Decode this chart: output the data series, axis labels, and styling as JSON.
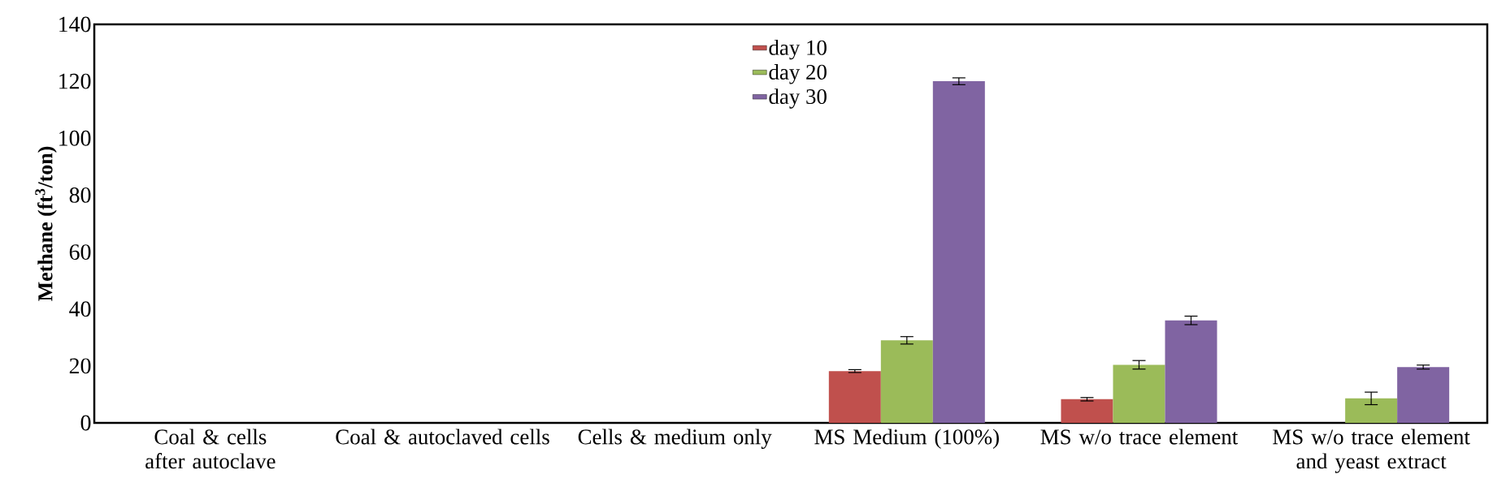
{
  "chart_data": {
    "type": "bar",
    "ylabel": "**Methane (ft$^{3}$/ton)**",
    "categories": [
      "Coal & cells after autoclave",
      "Coal & autoclaved cells",
      "Cells & medium only",
      "MS Medium (100%)",
      "MS w/o trace element",
      "MS w/o trace element and yeast extract"
    ],
    "series": [
      {
        "name": "day 10",
        "color": "#c0504d",
        "values": [
          0,
          0,
          0,
          18.2,
          8.3,
          0
        ],
        "errors": [
          null,
          null,
          null,
          0.5,
          0.6,
          null
        ]
      },
      {
        "name": "day 20",
        "color": "#9bbb59",
        "values": [
          0,
          0,
          0,
          29.0,
          20.4,
          8.6
        ],
        "errors": [
          null,
          null,
          null,
          1.3,
          1.5,
          2.2
        ]
      },
      {
        "name": "day 30",
        "color": "#8064a2",
        "values": [
          0,
          0,
          0,
          120.0,
          36.0,
          19.6
        ],
        "errors": [
          null,
          null,
          null,
          1.2,
          1.5,
          0.7
        ]
      }
    ],
    "ylim": [
      0,
      140
    ],
    "yticks": [
      0,
      20,
      40,
      60,
      80,
      100,
      120,
      140
    ],
    "grid": false,
    "legend": "top"
  }
}
